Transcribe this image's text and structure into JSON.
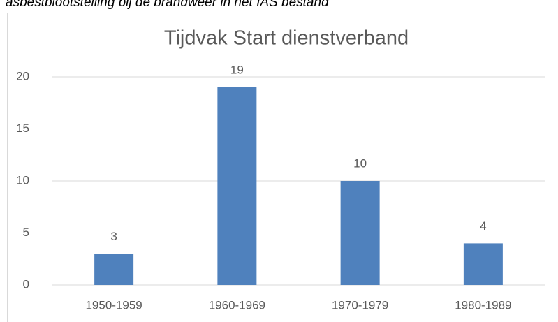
{
  "caption": "asbestblootstelling bij de brandweer in het IAS bestand",
  "chart_data": {
    "type": "bar",
    "title": "Tijdvak Start dienstverband",
    "categories": [
      "1950-1959",
      "1960-1969",
      "1970-1979",
      "1980-1989"
    ],
    "values": [
      3,
      19,
      10,
      4
    ],
    "color": "#4f81bd",
    "ylim": [
      0,
      20
    ],
    "yticks": [
      0,
      5,
      10,
      15,
      20
    ],
    "grid": true
  }
}
